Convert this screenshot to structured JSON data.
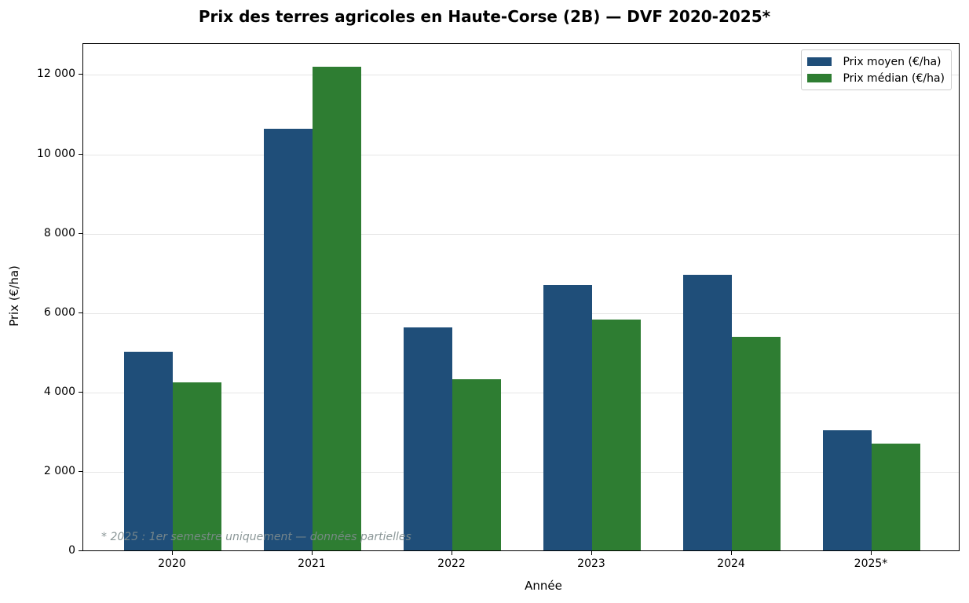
{
  "chart_data": {
    "type": "bar",
    "title": "Prix des terres agricoles en Haute-Corse (2B) — DVF 2020-2025*",
    "xlabel": "Année",
    "ylabel": "Prix (€/ha)",
    "categories": [
      "2020",
      "2021",
      "2022",
      "2023",
      "2024",
      "2025*"
    ],
    "series": [
      {
        "name": "Prix moyen (€/ha)",
        "color": "#1f4e79",
        "values": [
          5000,
          10620,
          5610,
          6680,
          6940,
          3020
        ]
      },
      {
        "name": "Prix médian (€/ha)",
        "color": "#2e7d32",
        "values": [
          4230,
          12180,
          4310,
          5810,
          5380,
          2690
        ]
      }
    ],
    "ylim": [
      0,
      12800
    ],
    "yticks": [
      0,
      2000,
      4000,
      6000,
      8000,
      10000,
      12000
    ],
    "ytick_labels": [
      "0",
      "2 000",
      "4 000",
      "6 000",
      "8 000",
      "10 000",
      "12 000"
    ],
    "grid": "y",
    "legend_position": "upper right",
    "annotation": "* 2025 : 1er semestre uniquement — données partielles"
  }
}
